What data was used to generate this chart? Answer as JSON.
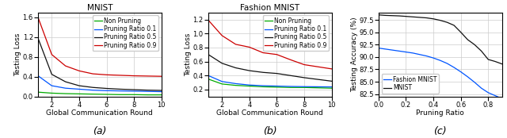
{
  "subplot_a": {
    "title": "MNIST",
    "xlabel": "Global Communication Round",
    "ylabel": "Testing Loss",
    "xlim": [
      1,
      10
    ],
    "ylim": [
      0,
      1.7
    ],
    "yticks": [
      0.0,
      0.4,
      0.8,
      1.2,
      1.6
    ],
    "xticks": [
      2,
      4,
      6,
      8,
      10
    ],
    "rounds": [
      1,
      2,
      3,
      4,
      5,
      6,
      7,
      8,
      9,
      10
    ],
    "non_pruning": [
      0.09,
      0.07,
      0.06,
      0.055,
      0.05,
      0.045,
      0.04,
      0.04,
      0.035,
      0.035
    ],
    "pruning_01": [
      0.42,
      0.22,
      0.17,
      0.15,
      0.13,
      0.12,
      0.115,
      0.11,
      0.105,
      0.1
    ],
    "pruning_05": [
      1.18,
      0.45,
      0.3,
      0.22,
      0.185,
      0.165,
      0.15,
      0.14,
      0.13,
      0.125
    ],
    "pruning_09": [
      1.6,
      0.85,
      0.62,
      0.52,
      0.46,
      0.44,
      0.43,
      0.42,
      0.415,
      0.41
    ],
    "colors": {
      "non_pruning": "#00aa00",
      "pruning_01": "#0055ff",
      "pruning_05": "#111111",
      "pruning_09": "#cc0000"
    },
    "legend_labels": [
      "Non Pruning",
      "Pruning Ratio 0.1",
      "Pruning Ratio 0.5",
      "Pruning Ratio 0.9"
    ]
  },
  "subplot_b": {
    "title": "Fashion MNIST",
    "xlabel": "Global Communication Round",
    "ylabel": "Testing Loss",
    "xlim": [
      1,
      10
    ],
    "ylim": [
      0.1,
      1.3
    ],
    "yticks": [
      0.2,
      0.4,
      0.6,
      0.8,
      1.0,
      1.2
    ],
    "xticks": [
      2,
      4,
      6,
      8,
      10
    ],
    "rounds": [
      1,
      2,
      3,
      4,
      5,
      6,
      7,
      8,
      9,
      10
    ],
    "non_pruning": [
      0.35,
      0.28,
      0.26,
      0.25,
      0.24,
      0.235,
      0.23,
      0.23,
      0.225,
      0.22
    ],
    "pruning_01": [
      0.4,
      0.315,
      0.285,
      0.265,
      0.255,
      0.25,
      0.245,
      0.242,
      0.24,
      0.238
    ],
    "pruning_05": [
      0.7,
      0.575,
      0.51,
      0.47,
      0.445,
      0.43,
      0.4,
      0.37,
      0.345,
      0.32
    ],
    "pruning_09": [
      1.19,
      0.97,
      0.845,
      0.805,
      0.725,
      0.7,
      0.625,
      0.555,
      0.525,
      0.495
    ],
    "colors": {
      "non_pruning": "#00aa00",
      "pruning_01": "#0055ff",
      "pruning_05": "#111111",
      "pruning_09": "#cc0000"
    },
    "legend_labels": [
      "Non Pruning",
      "Pruning Ratio 0.1",
      "Pruning Ratio 0.5",
      "Pruning Ratio 0.9"
    ]
  },
  "subplot_c": {
    "xlabel": "Pruning Ratio",
    "ylabel": "Testing Accuracy (%)",
    "xlim": [
      0.0,
      0.9
    ],
    "ylim": [
      82.0,
      99.0
    ],
    "yticks": [
      82.5,
      85.0,
      87.5,
      90.0,
      92.5,
      95.0,
      97.5
    ],
    "xticks": [
      0.0,
      0.2,
      0.4,
      0.6,
      0.8
    ],
    "pruning_ratios": [
      0.0,
      0.05,
      0.1,
      0.15,
      0.2,
      0.25,
      0.3,
      0.35,
      0.4,
      0.45,
      0.5,
      0.55,
      0.6,
      0.65,
      0.7,
      0.75,
      0.8,
      0.85,
      0.9
    ],
    "fashion_mnist": [
      91.8,
      91.6,
      91.4,
      91.2,
      91.0,
      90.8,
      90.5,
      90.2,
      89.8,
      89.3,
      88.7,
      87.9,
      87.0,
      86.0,
      84.9,
      83.7,
      82.8,
      82.2,
      81.6
    ],
    "mnist": [
      98.5,
      98.4,
      98.35,
      98.3,
      98.2,
      98.1,
      98.0,
      97.9,
      97.7,
      97.4,
      97.0,
      96.4,
      95.0,
      93.5,
      92.5,
      91.2,
      89.5,
      89.1,
      88.6
    ],
    "colors": {
      "fashion_mnist": "#0055ff",
      "mnist": "#111111"
    },
    "legend_labels": [
      "Fashion MNIST",
      "MNIST"
    ]
  },
  "label_fontsize": 6.5,
  "title_fontsize": 7.5,
  "tick_fontsize": 6,
  "legend_fontsize": 5.5,
  "caption_fontsize": 9,
  "bg_color": "#ffffff"
}
